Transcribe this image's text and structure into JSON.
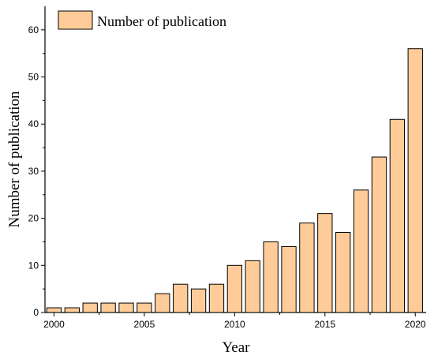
{
  "chart_data": {
    "type": "bar",
    "title": "",
    "xlabel": "Year",
    "ylabel": "Number of publication",
    "x": [
      2000,
      2001,
      2002,
      2003,
      2004,
      2005,
      2006,
      2007,
      2008,
      2009,
      2010,
      2011,
      2012,
      2013,
      2014,
      2015,
      2016,
      2017,
      2018,
      2019,
      2020
    ],
    "series": [
      {
        "name": "Number of publication",
        "color": "#FFCC99",
        "values": [
          1,
          1,
          2,
          2,
          2,
          2,
          4,
          6,
          5,
          6,
          10,
          11,
          15,
          14,
          19,
          21,
          17,
          26,
          33,
          41,
          56
        ]
      }
    ],
    "x_ticks": [
      "2000",
      "2005",
      "2010",
      "2015",
      "2020"
    ],
    "y_ticks": [
      "0",
      "10",
      "20",
      "30",
      "40",
      "50",
      "60"
    ],
    "xlim": [
      1999.5,
      2020.6
    ],
    "ylim": [
      0,
      65
    ],
    "grid": false,
    "legend_position": "top-left"
  }
}
